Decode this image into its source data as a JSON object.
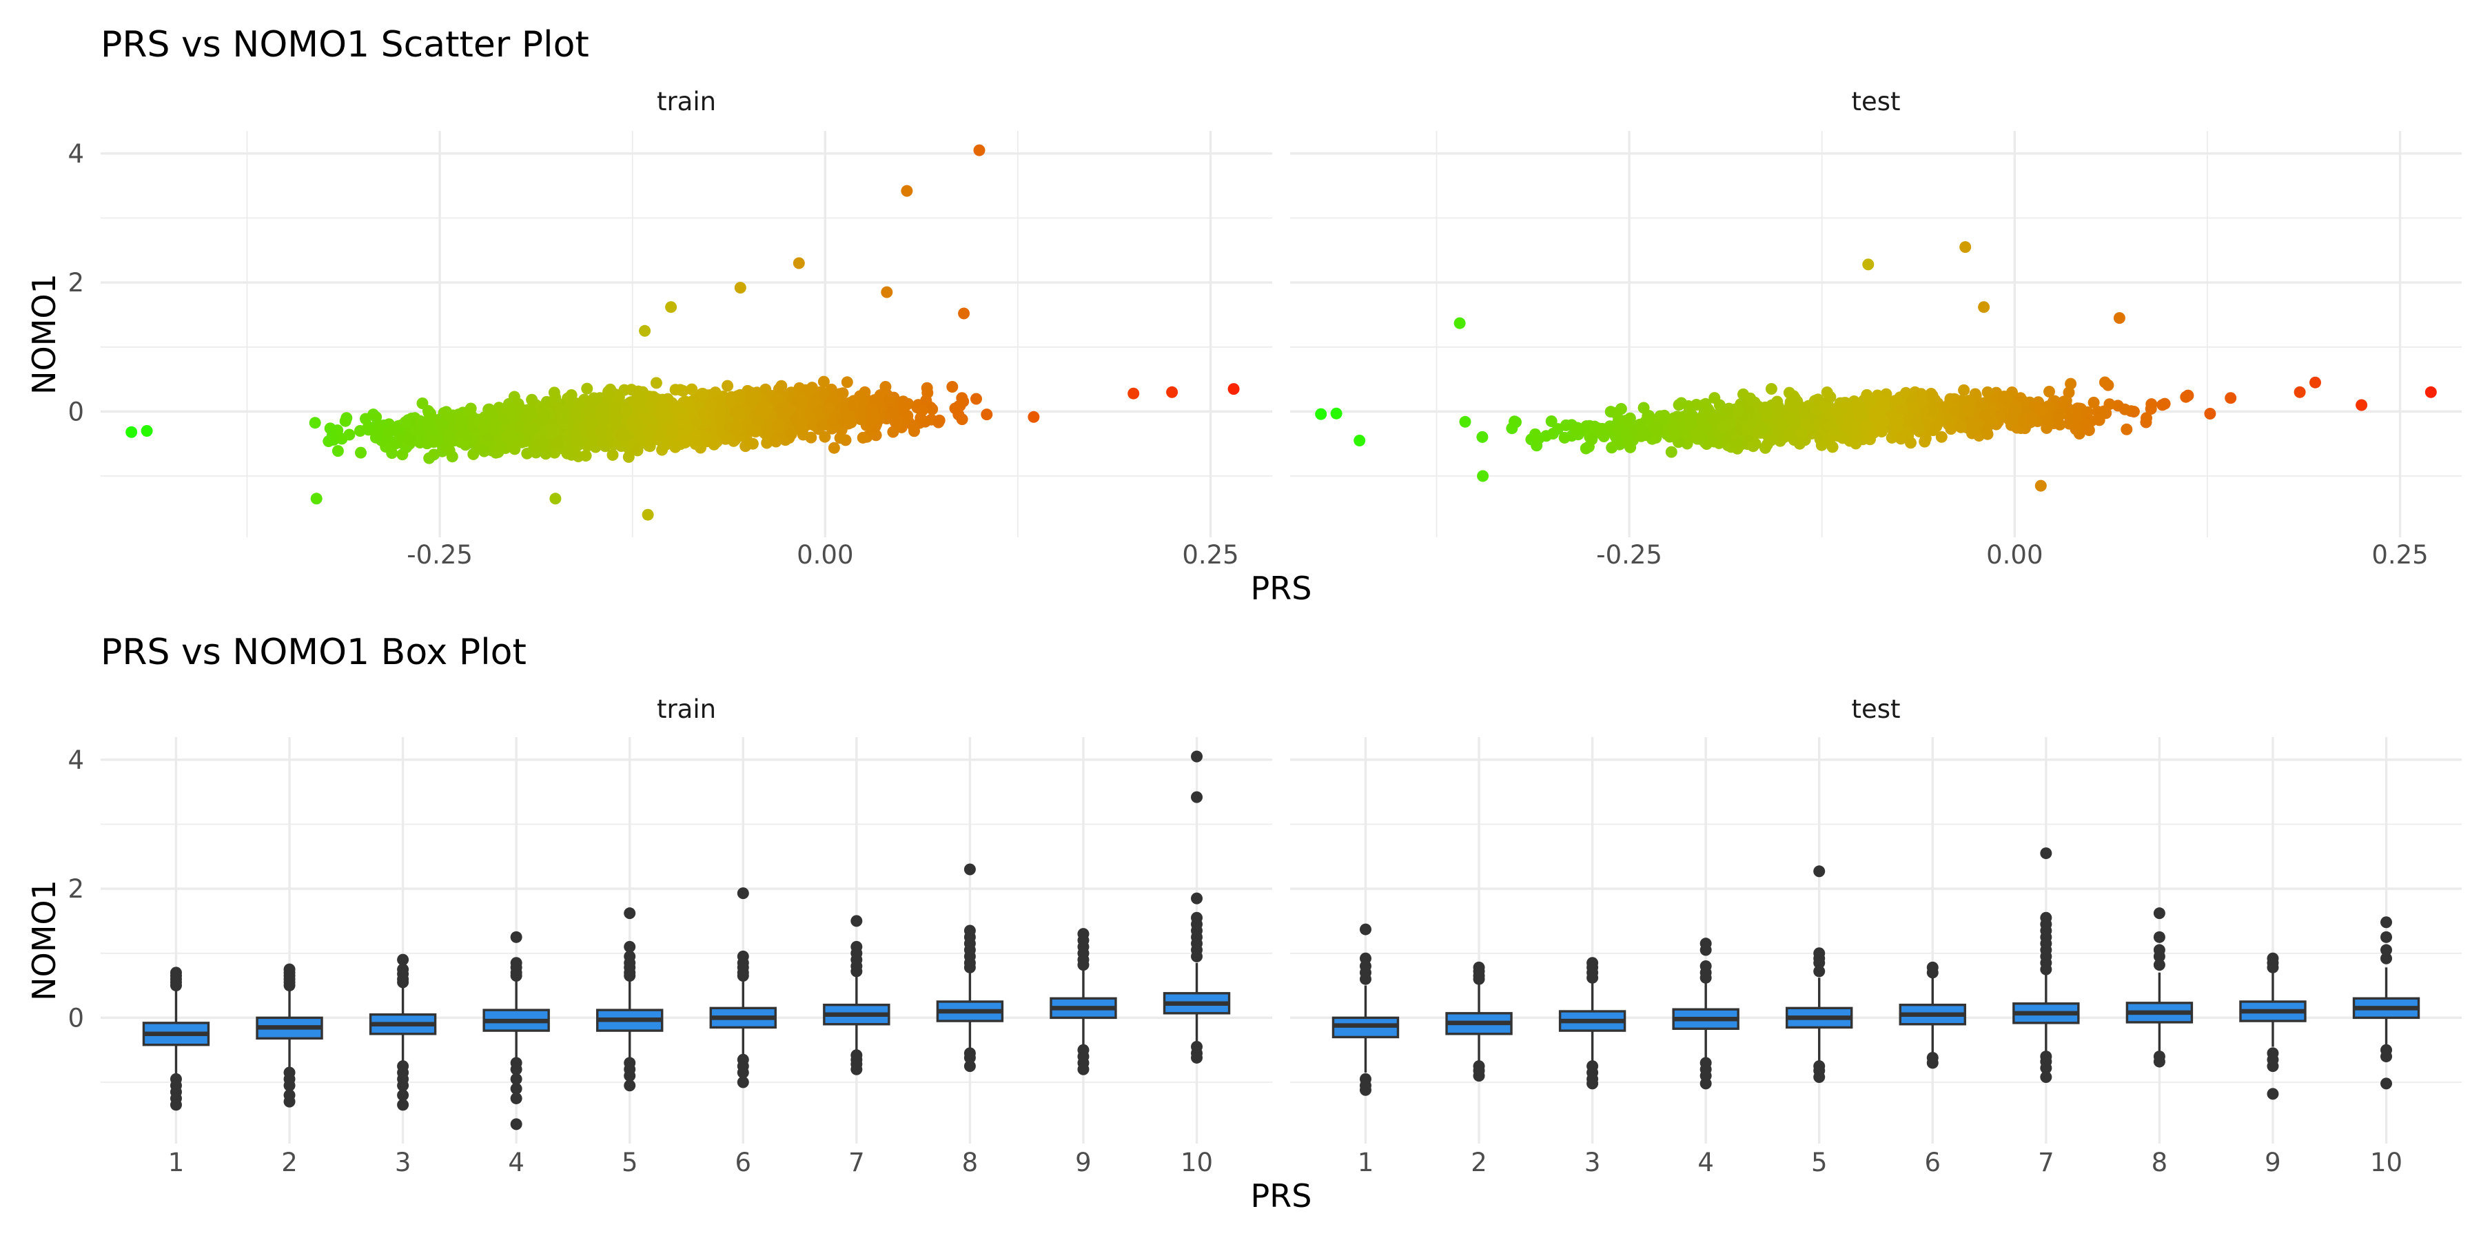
{
  "chart_data": [
    {
      "type": "scatter",
      "title": "PRS vs NOMO1 Scatter Plot",
      "xlabel": "PRS",
      "ylabel": "NOMO1",
      "facets": [
        "train",
        "test"
      ],
      "xlim": [
        -0.47,
        0.29
      ],
      "ylim": [
        -1.95,
        4.35
      ],
      "x_ticks": [
        -0.25,
        0.0,
        0.25
      ],
      "x_tick_labels": [
        "-0.25",
        "0.00",
        "0.25"
      ],
      "y_ticks": [
        0,
        2,
        4
      ],
      "y_tick_labels": [
        "0",
        "2",
        "4"
      ],
      "color_scale": {
        "low": "#1aff00",
        "mid": "#c8b400",
        "high": "#ff1a00"
      },
      "grid": true,
      "legend": "none",
      "trend": {
        "train": {
          "intercept": 0.0,
          "slope": 1.25,
          "spread": 0.3
        },
        "test": {
          "intercept": 0.0,
          "slope": 0.9,
          "spread": 0.26
        }
      },
      "highlighted_points": {
        "train": [
          [
            0.1,
            4.05
          ],
          [
            0.053,
            3.42
          ],
          [
            -0.017,
            2.3
          ],
          [
            0.04,
            1.85
          ],
          [
            -0.055,
            1.92
          ],
          [
            -0.1,
            1.62
          ],
          [
            0.09,
            1.52
          ],
          [
            -0.117,
            1.25
          ],
          [
            0.265,
            0.35
          ],
          [
            0.225,
            0.3
          ],
          [
            0.2,
            0.28
          ],
          [
            -0.45,
            -0.32
          ],
          [
            -0.44,
            -0.3
          ],
          [
            -0.33,
            -1.35
          ],
          [
            -0.115,
            -1.6
          ],
          [
            -0.175,
            -1.35
          ]
        ],
        "test": [
          [
            -0.032,
            2.55
          ],
          [
            -0.095,
            2.28
          ],
          [
            -0.36,
            1.37
          ],
          [
            -0.02,
            1.62
          ],
          [
            0.068,
            1.45
          ],
          [
            0.27,
            0.3
          ],
          [
            0.225,
            0.1
          ],
          [
            0.195,
            0.45
          ],
          [
            0.185,
            0.3
          ],
          [
            -0.44,
            -0.03
          ],
          [
            -0.45,
            -0.04
          ],
          [
            -0.425,
            -0.45
          ],
          [
            0.017,
            -1.15
          ],
          [
            -0.345,
            -1.0
          ]
        ]
      }
    },
    {
      "type": "box",
      "title": "PRS vs NOMO1 Box Plot",
      "xlabel": "PRS",
      "ylabel": "NOMO1",
      "facets": [
        "train",
        "test"
      ],
      "categories": [
        "1",
        "2",
        "3",
        "4",
        "5",
        "6",
        "7",
        "8",
        "9",
        "10"
      ],
      "ylim": [
        -1.95,
        4.35
      ],
      "y_ticks": [
        0,
        2,
        4
      ],
      "y_tick_labels": [
        "0",
        "2",
        "4"
      ],
      "box_color": "#2e8be6",
      "grid": true,
      "legend": "none",
      "boxes": {
        "train": [
          {
            "q1": -0.42,
            "median": -0.25,
            "q3": -0.08,
            "wlow": -0.9,
            "whigh": 0.42,
            "outliers": [
              0.7,
              0.65,
              0.6,
              0.55,
              0.5,
              -0.95,
              -1.05,
              -1.15,
              -1.25,
              -1.35
            ]
          },
          {
            "q1": -0.32,
            "median": -0.15,
            "q3": 0.0,
            "wlow": -0.78,
            "whigh": 0.48,
            "outliers": [
              0.75,
              0.7,
              0.65,
              0.6,
              0.55,
              0.5,
              -0.85,
              -0.95,
              -1.05,
              -1.2,
              -1.3
            ]
          },
          {
            "q1": -0.25,
            "median": -0.1,
            "q3": 0.05,
            "wlow": -0.7,
            "whigh": 0.5,
            "outliers": [
              0.9,
              0.75,
              0.68,
              0.6,
              0.55,
              -0.75,
              -0.85,
              -0.95,
              -1.05,
              -1.2,
              -1.35
            ]
          },
          {
            "q1": -0.2,
            "median": -0.05,
            "q3": 0.12,
            "wlow": -0.65,
            "whigh": 0.58,
            "outliers": [
              1.25,
              0.85,
              0.78,
              0.7,
              0.65,
              -0.7,
              -0.8,
              -0.95,
              -1.1,
              -1.25,
              -1.65
            ]
          },
          {
            "q1": -0.2,
            "median": -0.03,
            "q3": 0.12,
            "wlow": -0.65,
            "whigh": 0.58,
            "outliers": [
              1.62,
              1.1,
              0.95,
              0.85,
              0.78,
              0.7,
              0.65,
              -0.7,
              -0.8,
              -0.9,
              -1.05
            ]
          },
          {
            "q1": -0.15,
            "median": 0.0,
            "q3": 0.15,
            "wlow": -0.6,
            "whigh": 0.6,
            "outliers": [
              1.93,
              0.95,
              0.85,
              0.78,
              0.7,
              0.65,
              -0.65,
              -0.75,
              -0.85,
              -1.0
            ]
          },
          {
            "q1": -0.1,
            "median": 0.05,
            "q3": 0.2,
            "wlow": -0.55,
            "whigh": 0.65,
            "outliers": [
              1.5,
              1.1,
              1.0,
              0.9,
              0.8,
              0.72,
              -0.58,
              -0.65,
              -0.72,
              -0.8
            ]
          },
          {
            "q1": -0.05,
            "median": 0.1,
            "q3": 0.25,
            "wlow": -0.5,
            "whigh": 0.7,
            "outliers": [
              2.3,
              1.35,
              1.25,
              1.15,
              1.05,
              0.95,
              0.85,
              0.78,
              -0.55,
              -0.62,
              -0.75
            ]
          },
          {
            "q1": 0.0,
            "median": 0.15,
            "q3": 0.3,
            "wlow": -0.45,
            "whigh": 0.75,
            "outliers": [
              1.3,
              1.2,
              1.1,
              1.0,
              0.9,
              0.82,
              -0.5,
              -0.6,
              -0.7,
              -0.8
            ]
          },
          {
            "q1": 0.07,
            "median": 0.22,
            "q3": 0.38,
            "wlow": -0.4,
            "whigh": 0.85,
            "outliers": [
              4.05,
              3.42,
              1.85,
              1.55,
              1.45,
              1.35,
              1.25,
              1.15,
              1.05,
              0.95,
              -0.45,
              -0.55,
              -0.62
            ]
          }
        ],
        "test": [
          {
            "q1": -0.3,
            "median": -0.12,
            "q3": 0.0,
            "wlow": -0.85,
            "whigh": 0.5,
            "outliers": [
              1.37,
              0.92,
              0.8,
              0.7,
              0.6,
              -0.95,
              -1.05,
              -1.12
            ]
          },
          {
            "q1": -0.25,
            "median": -0.08,
            "q3": 0.07,
            "wlow": -0.72,
            "whigh": 0.55,
            "outliers": [
              0.78,
              0.72,
              0.65,
              0.6,
              -0.75,
              -0.82,
              -0.9
            ]
          },
          {
            "q1": -0.2,
            "median": -0.05,
            "q3": 0.1,
            "wlow": -0.72,
            "whigh": 0.55,
            "outliers": [
              0.85,
              0.78,
              0.7,
              0.62,
              -0.75,
              -0.85,
              -0.95,
              -1.02
            ]
          },
          {
            "q1": -0.17,
            "median": -0.02,
            "q3": 0.13,
            "wlow": -0.68,
            "whigh": 0.58,
            "outliers": [
              1.15,
              1.05,
              0.8,
              0.7,
              0.62,
              -0.7,
              -0.8,
              -0.9,
              -1.02
            ]
          },
          {
            "q1": -0.15,
            "median": 0.0,
            "q3": 0.15,
            "wlow": -0.68,
            "whigh": 0.62,
            "outliers": [
              2.27,
              1.0,
              0.92,
              0.85,
              0.72,
              -0.75,
              -0.82,
              -0.92
            ]
          },
          {
            "q1": -0.1,
            "median": 0.05,
            "q3": 0.2,
            "wlow": -0.58,
            "whigh": 0.62,
            "outliers": [
              0.78,
              0.7,
              -0.62,
              -0.7
            ]
          },
          {
            "q1": -0.08,
            "median": 0.07,
            "q3": 0.22,
            "wlow": -0.55,
            "whigh": 0.68,
            "outliers": [
              2.55,
              1.55,
              1.45,
              1.35,
              1.25,
              1.15,
              1.05,
              0.95,
              0.85,
              0.75,
              -0.6,
              -0.68,
              -0.78,
              -0.92
            ]
          },
          {
            "q1": -0.07,
            "median": 0.08,
            "q3": 0.23,
            "wlow": -0.55,
            "whigh": 0.7,
            "outliers": [
              1.62,
              1.25,
              1.05,
              0.95,
              0.82,
              -0.6,
              -0.68
            ]
          },
          {
            "q1": -0.05,
            "median": 0.1,
            "q3": 0.25,
            "wlow": -0.45,
            "whigh": 0.72,
            "outliers": [
              0.92,
              0.85,
              0.78,
              -0.55,
              -0.65,
              -0.75,
              -1.18
            ]
          },
          {
            "q1": 0.0,
            "median": 0.15,
            "q3": 0.3,
            "wlow": -0.45,
            "whigh": 0.78,
            "outliers": [
              1.48,
              1.25,
              1.05,
              0.92,
              -0.5,
              -0.6,
              -1.02
            ]
          }
        ]
      }
    }
  ]
}
